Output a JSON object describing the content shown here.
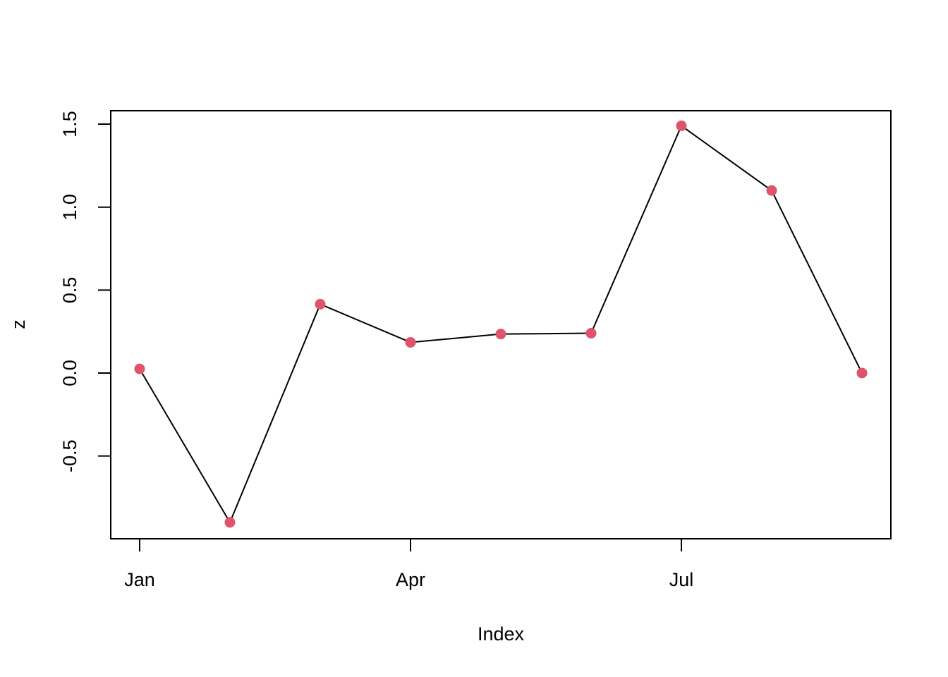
{
  "chart_data": {
    "type": "line",
    "x_label": "Index",
    "y_label": "z",
    "categories": [
      "Jan",
      null,
      null,
      "Apr",
      null,
      null,
      "Jul",
      null,
      null
    ],
    "values": [
      0.025,
      -0.9,
      0.415,
      0.185,
      0.235,
      0.24,
      1.49,
      1.1,
      0.0
    ],
    "line_color": "#000000",
    "marker_color": "#df536b",
    "ylim": [
      -0.999,
      1.581
    ],
    "yticks": [
      -0.5,
      {
        "value": 0,
        "label": "0.0"
      },
      0.5,
      {
        "value": 1,
        "label": "1.0"
      },
      1.5
    ],
    "grid": false
  }
}
